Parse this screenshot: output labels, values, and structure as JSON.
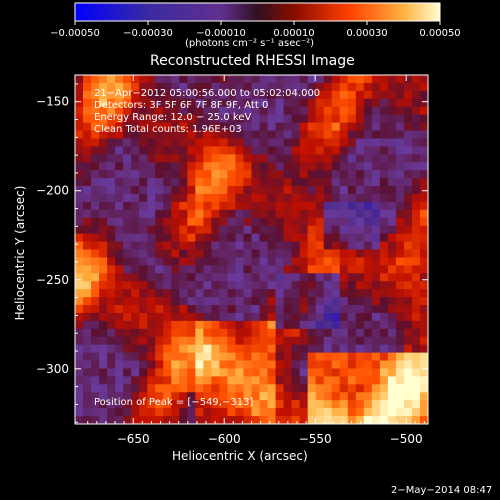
{
  "chart_data": {
    "type": "heatmap",
    "title": "Reconstructed RHESSI Image",
    "xlabel": "Heliocentric X (arcsec)",
    "ylabel": "Heliocentric Y (arcsec)",
    "xlim": [
      -682,
      -488
    ],
    "ylim": [
      -331,
      -135
    ],
    "x_ticks": [
      -650,
      -600,
      -550,
      -500
    ],
    "x_tick_labels": [
      "−650",
      "−600",
      "−550",
      "−500"
    ],
    "y_ticks": [
      -150,
      -200,
      -250,
      -300
    ],
    "y_tick_labels": [
      "−150",
      "−200",
      "−250",
      "−300"
    ],
    "colorbar": {
      "range": [
        -0.0005,
        0.0005
      ],
      "tick_values": [
        -0.0005,
        -0.0003,
        -0.0001,
        0.0001,
        0.0003,
        0.0005
      ],
      "tick_labels": [
        "−0.00050",
        "−0.00030",
        "−0.00010",
        "0.00010",
        "0.00030",
        "0.00050"
      ],
      "unit_label": "(photons cm⁻² s⁻¹ asec⁻²)"
    },
    "annotations": [
      "21−Apr−2012 05:00:56.000 to 05:02:04.000",
      "Detectors: 3F 5F 6F 7F 8F 9F, Att 0",
      "Energy Range: 12.0 − 25.0 keV",
      "Clean     Total counts: 1.96E+03"
    ],
    "peak_label": "Position of Peak = [−549,−313]",
    "peak_position": [
      -549,
      -313
    ],
    "colormap_stops": [
      "#0000ff",
      "#4b2a8c",
      "#6a3a9a",
      "#5a1030",
      "#c01000",
      "#ff5000",
      "#ffb040",
      "#ffffd0"
    ],
    "axis_color": "#ffffff"
  },
  "footer": {
    "date": "2−May−2014 08:47"
  }
}
